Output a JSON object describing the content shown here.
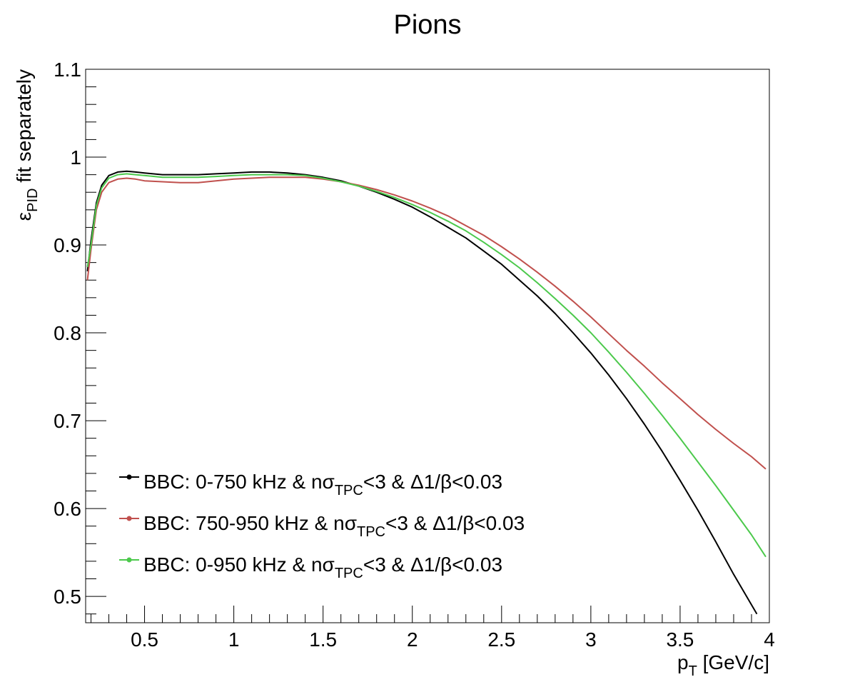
{
  "chart_data": {
    "type": "line",
    "title": "Pions",
    "xlabel": {
      "main": "p",
      "sub": "T",
      "rest": " [GeV/c]"
    },
    "ylabel": {
      "main": "ε",
      "sub": "PID",
      "rest": " fit separately"
    },
    "xlim": [
      0.17,
      4.0
    ],
    "ylim": [
      0.47,
      1.1
    ],
    "x_ticks": [
      {
        "value": 0.5,
        "label": "0.5"
      },
      {
        "value": 1.0,
        "label": "1"
      },
      {
        "value": 1.5,
        "label": "1.5"
      },
      {
        "value": 2.0,
        "label": "2"
      },
      {
        "value": 2.5,
        "label": "2.5"
      },
      {
        "value": 3.0,
        "label": "3"
      },
      {
        "value": 3.5,
        "label": "3.5"
      },
      {
        "value": 4.0,
        "label": "4"
      }
    ],
    "y_ticks": [
      {
        "value": 0.5,
        "label": "0.5"
      },
      {
        "value": 0.6,
        "label": "0.6"
      },
      {
        "value": 0.7,
        "label": "0.7"
      },
      {
        "value": 0.8,
        "label": "0.8"
      },
      {
        "value": 0.9,
        "label": "0.9"
      },
      {
        "value": 1.0,
        "label": "1"
      },
      {
        "value": 1.1,
        "label": "1.1"
      }
    ],
    "grid": false,
    "legend_position": "bottom-left",
    "series": [
      {
        "name": "BBC: 0-750 kHz & nσTPC<3 & Δ1/β<0.03",
        "legend": {
          "pre": "BBC: 0-750 kHz & nσ",
          "sub": "TPC",
          "post": "<3 & Δ1/β<0.03"
        },
        "color": "#000000",
        "x": [
          0.18,
          0.2,
          0.23,
          0.26,
          0.3,
          0.35,
          0.4,
          0.45,
          0.5,
          0.6,
          0.7,
          0.8,
          0.9,
          1.0,
          1.1,
          1.2,
          1.3,
          1.4,
          1.5,
          1.6,
          1.7,
          1.8,
          1.9,
          2.0,
          2.1,
          2.2,
          2.3,
          2.4,
          2.5,
          2.6,
          2.7,
          2.8,
          2.9,
          3.0,
          3.1,
          3.2,
          3.3,
          3.4,
          3.5,
          3.6,
          3.7,
          3.8,
          3.93
        ],
        "y": [
          0.87,
          0.905,
          0.948,
          0.968,
          0.979,
          0.983,
          0.984,
          0.983,
          0.982,
          0.98,
          0.98,
          0.98,
          0.981,
          0.982,
          0.983,
          0.983,
          0.982,
          0.98,
          0.977,
          0.973,
          0.967,
          0.96,
          0.952,
          0.943,
          0.932,
          0.92,
          0.908,
          0.893,
          0.878,
          0.86,
          0.842,
          0.822,
          0.8,
          0.777,
          0.752,
          0.725,
          0.696,
          0.665,
          0.632,
          0.598,
          0.562,
          0.525,
          0.48
        ]
      },
      {
        "name": "BBC: 750-950 kHz & nσTPC<3 & Δ1/β<0.03",
        "legend": {
          "pre": "BBC: 750-950 kHz & nσ",
          "sub": "TPC",
          "post": "<3 & Δ1/β<0.03"
        },
        "color": "#c0504d",
        "x": [
          0.18,
          0.2,
          0.23,
          0.26,
          0.3,
          0.35,
          0.4,
          0.45,
          0.5,
          0.6,
          0.7,
          0.8,
          0.9,
          1.0,
          1.1,
          1.2,
          1.3,
          1.4,
          1.5,
          1.6,
          1.7,
          1.8,
          1.9,
          2.0,
          2.1,
          2.2,
          2.3,
          2.4,
          2.5,
          2.6,
          2.7,
          2.8,
          2.9,
          3.0,
          3.1,
          3.2,
          3.3,
          3.4,
          3.5,
          3.6,
          3.7,
          3.8,
          3.9,
          3.98
        ],
        "y": [
          0.86,
          0.895,
          0.94,
          0.96,
          0.971,
          0.975,
          0.976,
          0.975,
          0.973,
          0.972,
          0.971,
          0.971,
          0.973,
          0.975,
          0.976,
          0.977,
          0.977,
          0.977,
          0.975,
          0.972,
          0.968,
          0.963,
          0.957,
          0.95,
          0.942,
          0.933,
          0.922,
          0.911,
          0.898,
          0.884,
          0.869,
          0.853,
          0.836,
          0.818,
          0.799,
          0.78,
          0.762,
          0.743,
          0.725,
          0.707,
          0.69,
          0.674,
          0.659,
          0.645
        ]
      },
      {
        "name": "BBC: 0-950 kHz & nσTPC<3 & Δ1/β<0.03",
        "legend": {
          "pre": "BBC: 0-950 kHz & nσ",
          "sub": "TPC",
          "post": "<3 & Δ1/β<0.03"
        },
        "color": "#4cc94c",
        "x": [
          0.18,
          0.2,
          0.23,
          0.26,
          0.3,
          0.35,
          0.4,
          0.45,
          0.5,
          0.6,
          0.7,
          0.8,
          0.9,
          1.0,
          1.1,
          1.2,
          1.3,
          1.4,
          1.5,
          1.6,
          1.7,
          1.8,
          1.9,
          2.0,
          2.1,
          2.2,
          2.3,
          2.4,
          2.5,
          2.6,
          2.7,
          2.8,
          2.9,
          3.0,
          3.1,
          3.2,
          3.3,
          3.4,
          3.5,
          3.6,
          3.7,
          3.8,
          3.9,
          3.98
        ],
        "y": [
          0.875,
          0.9,
          0.945,
          0.965,
          0.976,
          0.98,
          0.981,
          0.98,
          0.979,
          0.977,
          0.977,
          0.977,
          0.978,
          0.979,
          0.98,
          0.98,
          0.98,
          0.979,
          0.976,
          0.972,
          0.967,
          0.961,
          0.954,
          0.946,
          0.937,
          0.927,
          0.916,
          0.903,
          0.889,
          0.874,
          0.857,
          0.839,
          0.82,
          0.8,
          0.778,
          0.755,
          0.731,
          0.706,
          0.68,
          0.653,
          0.626,
          0.598,
          0.57,
          0.545
        ]
      }
    ]
  }
}
